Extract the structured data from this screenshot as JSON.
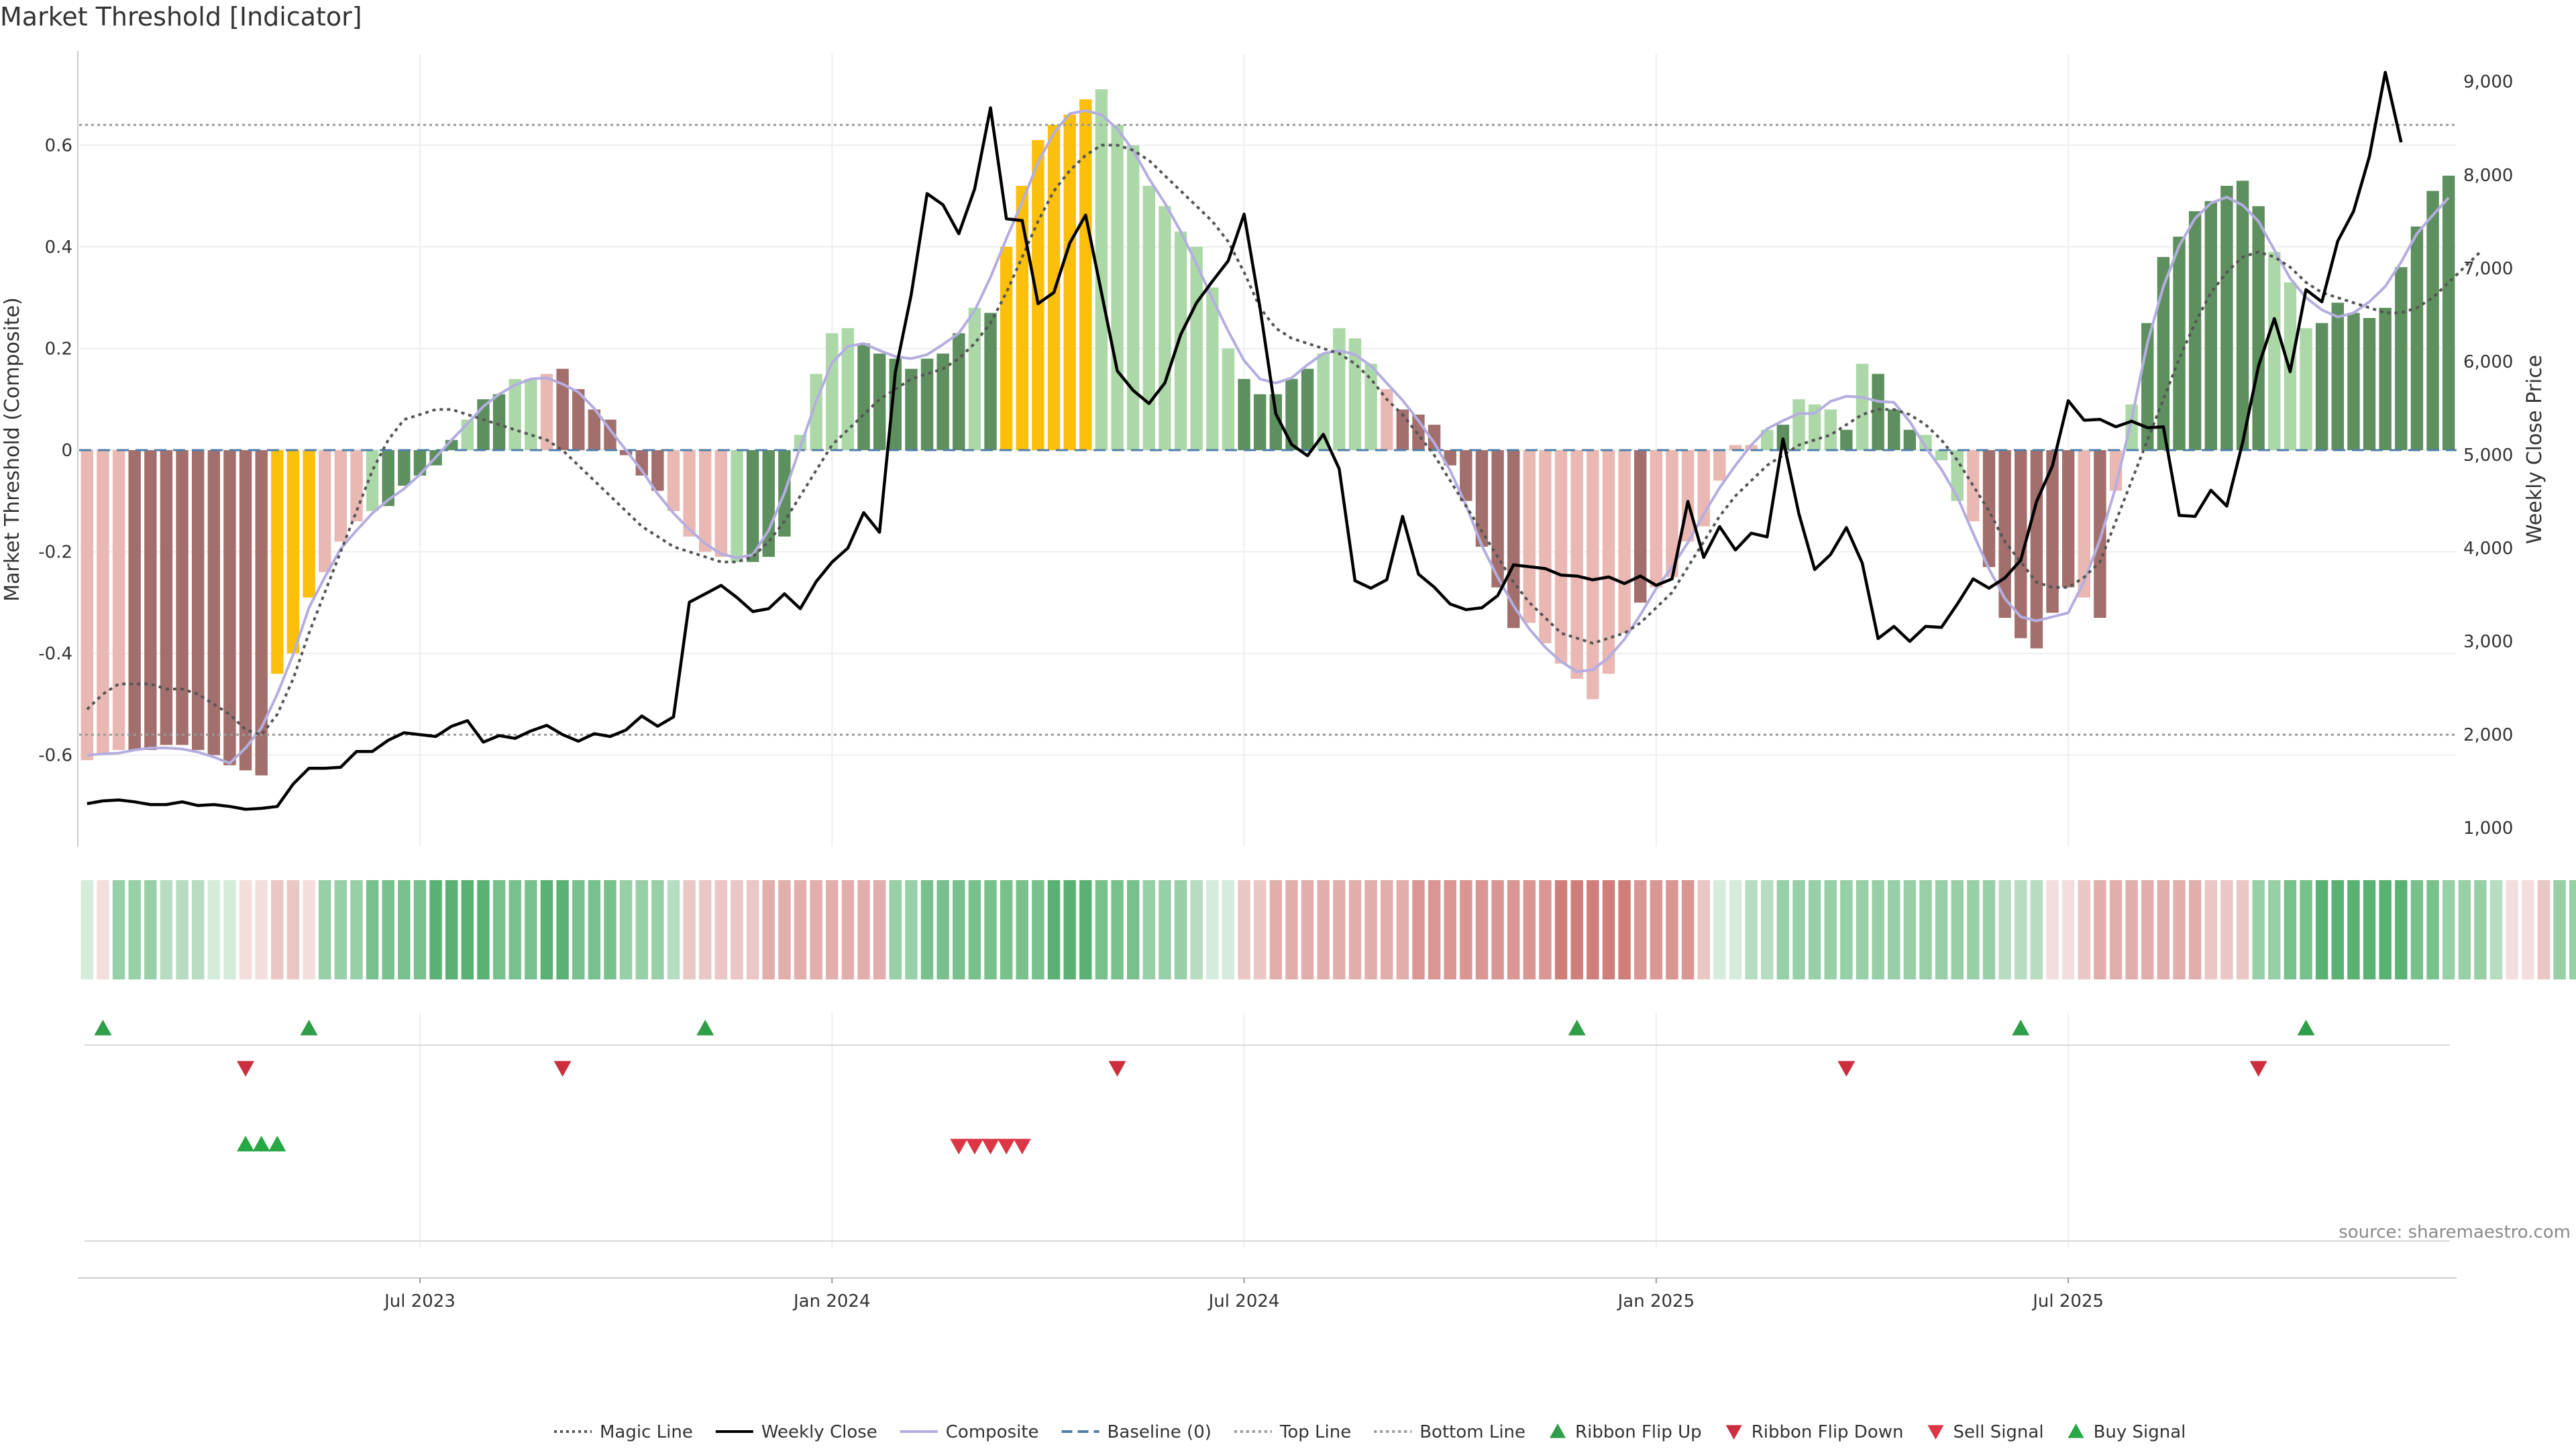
{
  "chart_data": {
    "type": "bar",
    "title": "Market Threshold [Indicator]",
    "ylabel_left": "Market Threshold (Composite)",
    "ylabel_right": "Weekly Close Price",
    "source": "source: sharemaestro.com",
    "ylim_left": [
      -0.78,
      0.78
    ],
    "ylim_right": [
      800,
      9300
    ],
    "yticks_left": [
      "-0.6",
      "-0.4",
      "-0.2",
      "0",
      "0.2",
      "0.4",
      "0.6"
    ],
    "yticks_right": [
      "1,000",
      "2,000",
      "3,000",
      "4,000",
      "5,000",
      "6,000",
      "7,000",
      "8,000",
      "9,000"
    ],
    "x_ticks": [
      {
        "label": "Jul 2023",
        "week": 21
      },
      {
        "label": "Jan 2024",
        "week": 47
      },
      {
        "label": "Jul 2024",
        "week": 73
      },
      {
        "label": "Jan 2025",
        "week": 99
      },
      {
        "label": "Jul 2025",
        "week": 125
      }
    ],
    "top_line": 0.64,
    "bottom_line": -0.56,
    "baseline": 0,
    "composite": [
      -0.61,
      -0.6,
      -0.59,
      -0.59,
      -0.59,
      -0.58,
      -0.58,
      -0.59,
      -0.6,
      -0.62,
      -0.63,
      -0.64,
      -0.44,
      -0.4,
      -0.29,
      -0.24,
      -0.18,
      -0.14,
      -0.12,
      -0.11,
      -0.07,
      -0.05,
      -0.03,
      0.02,
      0.06,
      0.1,
      0.11,
      0.14,
      0.14,
      0.15,
      0.16,
      0.12,
      0.08,
      0.06,
      -0.01,
      -0.05,
      -0.08,
      -0.12,
      -0.17,
      -0.2,
      -0.21,
      -0.22,
      -0.22,
      -0.21,
      -0.17,
      0.03,
      0.15,
      0.23,
      0.24,
      0.21,
      0.19,
      0.18,
      0.16,
      0.18,
      0.19,
      0.23,
      0.28,
      0.27,
      0.4,
      0.52,
      0.61,
      0.64,
      0.66,
      0.69,
      0.71,
      0.64,
      0.6,
      0.52,
      0.48,
      0.43,
      0.4,
      0.32,
      0.2,
      0.14,
      0.11,
      0.11,
      0.14,
      0.16,
      0.19,
      0.24,
      0.22,
      0.17,
      0.12,
      0.08,
      0.07,
      0.05,
      -0.03,
      -0.1,
      -0.19,
      -0.27,
      -0.35,
      -0.34,
      -0.38,
      -0.42,
      -0.45,
      -0.49,
      -0.44,
      -0.36,
      -0.3,
      -0.27,
      -0.25,
      -0.18,
      -0.15,
      -0.06,
      0.01,
      0.01,
      0.04,
      0.05,
      0.1,
      0.09,
      0.08,
      0.04,
      0.17,
      0.15,
      0.08,
      0.04,
      0.03,
      -0.02,
      -0.1,
      -0.14,
      -0.23,
      -0.33,
      -0.37,
      -0.39,
      -0.32,
      -0.27,
      -0.29,
      -0.33,
      -0.08,
      0.09,
      0.25,
      0.38,
      0.42,
      0.47,
      0.49,
      0.52,
      0.53,
      0.48,
      0.39,
      0.33,
      0.24,
      0.25,
      0.29,
      0.27,
      0.26,
      0.28,
      0.36,
      0.44,
      0.51,
      0.54
    ],
    "bar_color_codes": "rrrRRRRRRRRRYYYrrrgGGGGGgGGggrRRRRRRRrrrrgGGGggggGGGGGGGgGYYYYYYgggggggggGGGGGggggrRRRRRRRRrrrrrrrRrrrrrrrgGgggGgGGGgggrRRRRRRrRrgGGGGGGGGgggGGGGGGGGG",
    "magic_line": [
      -0.51,
      -0.48,
      -0.46,
      -0.46,
      -0.46,
      -0.47,
      -0.47,
      -0.48,
      -0.5,
      -0.52,
      -0.55,
      -0.56,
      -0.52,
      -0.45,
      -0.36,
      -0.28,
      -0.2,
      -0.12,
      -0.04,
      0.02,
      0.06,
      0.07,
      0.08,
      0.08,
      0.07,
      0.06,
      0.05,
      0.04,
      0.03,
      0.02,
      0.0,
      -0.03,
      -0.06,
      -0.09,
      -0.12,
      -0.15,
      -0.17,
      -0.19,
      -0.2,
      -0.21,
      -0.22,
      -0.22,
      -0.21,
      -0.18,
      -0.14,
      -0.09,
      -0.04,
      0.01,
      0.04,
      0.07,
      0.1,
      0.12,
      0.14,
      0.15,
      0.16,
      0.18,
      0.21,
      0.25,
      0.31,
      0.38,
      0.45,
      0.51,
      0.55,
      0.58,
      0.6,
      0.6,
      0.59,
      0.57,
      0.54,
      0.51,
      0.48,
      0.45,
      0.41,
      0.35,
      0.28,
      0.24,
      0.22,
      0.21,
      0.2,
      0.19,
      0.17,
      0.14,
      0.1,
      0.07,
      0.03,
      -0.01,
      -0.06,
      -0.11,
      -0.16,
      -0.21,
      -0.26,
      -0.3,
      -0.33,
      -0.36,
      -0.37,
      -0.38,
      -0.37,
      -0.36,
      -0.34,
      -0.31,
      -0.28,
      -0.23,
      -0.18,
      -0.13,
      -0.09,
      -0.06,
      -0.03,
      -0.01,
      0.01,
      0.02,
      0.03,
      0.05,
      0.07,
      0.08,
      0.08,
      0.07,
      0.05,
      0.02,
      -0.02,
      -0.07,
      -0.12,
      -0.18,
      -0.22,
      -0.26,
      -0.27,
      -0.27,
      -0.25,
      -0.22,
      -0.14,
      -0.06,
      0.02,
      0.1,
      0.18,
      0.25,
      0.31,
      0.35,
      0.38,
      0.39,
      0.38,
      0.36,
      0.33,
      0.31,
      0.3,
      0.29,
      0.28,
      0.27,
      0.27,
      0.28,
      0.3,
      0.33,
      0.36,
      0.39
    ],
    "weekly_close": [
      1260,
      1290,
      1300,
      1280,
      1250,
      1250,
      1280,
      1240,
      1250,
      1230,
      1200,
      1210,
      1230,
      1470,
      1640,
      1640,
      1650,
      1820,
      1820,
      1940,
      2020,
      2000,
      1980,
      2090,
      2150,
      1920,
      1990,
      1960,
      2040,
      2100,
      2000,
      1930,
      2010,
      1980,
      2050,
      2200,
      2090,
      2190,
      3420,
      3510,
      3600,
      3470,
      3320,
      3350,
      3510,
      3350,
      3640,
      3850,
      4000,
      4380,
      4170,
      5890,
      6720,
      7800,
      7680,
      7370,
      7850,
      8720,
      7530,
      7510,
      6620,
      6740,
      7270,
      7570,
      6740,
      5900,
      5690,
      5550,
      5770,
      6290,
      6630,
      6860,
      7080,
      7580,
      6580,
      5440,
      5110,
      4990,
      5220,
      4850,
      3650,
      3570,
      3660,
      4340,
      3720,
      3580,
      3400,
      3340,
      3360,
      3490,
      3820,
      3800,
      3780,
      3710,
      3700,
      3660,
      3690,
      3620,
      3700,
      3600,
      3670,
      4500,
      3900,
      4230,
      3980,
      4160,
      4120,
      5170,
      4370,
      3770,
      3930,
      4220,
      3840,
      3030,
      3160,
      3000,
      3160,
      3150,
      3400,
      3670,
      3570,
      3680,
      3870,
      4500,
      4880,
      5580,
      5370,
      5380,
      5300,
      5360,
      5290,
      5300,
      4350,
      4340,
      4620,
      4450,
      5130,
      5950,
      6460,
      5890,
      6770,
      6640,
      7290,
      7610,
      8200,
      9100,
      8350
    ],
    "ribbon": [
      1,
      -1,
      3,
      3,
      3,
      2,
      2,
      2,
      1,
      1,
      -1,
      -1,
      -2,
      -2,
      -1,
      3,
      3,
      3,
      4,
      4,
      4,
      4,
      5,
      5,
      5,
      5,
      4,
      4,
      4,
      5,
      5,
      4,
      4,
      4,
      3,
      3,
      3,
      2,
      -2,
      -2,
      -2,
      -2,
      -2,
      -3,
      -3,
      -3,
      -3,
      -3,
      -3,
      -3,
      -3,
      3,
      3,
      4,
      4,
      4,
      4,
      4,
      4,
      4,
      4,
      5,
      5,
      5,
      4,
      4,
      4,
      3,
      3,
      3,
      2,
      1,
      1,
      -2,
      -2,
      -3,
      -3,
      -3,
      -3,
      -3,
      -3,
      -3,
      -3,
      -3,
      -4,
      -4,
      -4,
      -4,
      -4,
      -4,
      -4,
      -4,
      -4,
      -5,
      -5,
      -5,
      -5,
      -5,
      -4,
      -4,
      -4,
      -4,
      -2,
      1,
      1,
      2,
      2,
      3,
      3,
      3,
      3,
      3,
      3,
      3,
      3,
      3,
      3,
      3,
      3,
      3,
      3,
      2,
      2,
      2,
      -1,
      -1,
      -2,
      -3,
      -3,
      -3,
      -3,
      -3,
      -3,
      -3,
      -2,
      -2,
      -2,
      3,
      3,
      4,
      4,
      5,
      5,
      5,
      5,
      5,
      5,
      4,
      4,
      3,
      3,
      3,
      2,
      -1,
      -1,
      -2,
      3,
      3,
      3,
      2
    ],
    "ribbon_flip_up": [
      1,
      14,
      39,
      94,
      122,
      140
    ],
    "ribbon_flip_down": [
      10,
      30,
      65,
      111,
      137
    ],
    "buy_signal": [
      10,
      11,
      12
    ],
    "sell_signal": [
      55,
      56,
      57,
      58,
      59
    ],
    "legend": [
      {
        "label": "Magic Line",
        "kind": "dotted-line",
        "color": "#555555"
      },
      {
        "label": "Weekly Close",
        "kind": "line",
        "color": "#000000"
      },
      {
        "label": "Composite",
        "kind": "line",
        "color": "#b4aee0"
      },
      {
        "label": "Baseline (0)",
        "kind": "dashed-line",
        "color": "#4f7fa8"
      },
      {
        "label": "Top Line",
        "kind": "dotted-line",
        "color": "#999999"
      },
      {
        "label": "Bottom Line",
        "kind": "dotted-line",
        "color": "#999999"
      },
      {
        "label": "Ribbon Flip Up",
        "kind": "triangle-up",
        "color": "#2e9e48"
      },
      {
        "label": "Ribbon Flip Down",
        "kind": "triangle-down",
        "color": "#cc2e3d"
      },
      {
        "label": "Sell Signal",
        "kind": "triangle-down",
        "color": "#dc3545"
      },
      {
        "label": "Buy Signal",
        "kind": "triangle-up",
        "color": "#28a745"
      }
    ],
    "colors": {
      "red_light": "#eab8b2",
      "red_dark": "#a36f6c",
      "green_light": "#acd8a8",
      "green_dark": "#5e8f5e",
      "yellow": "#fbbf0c",
      "ribbon_up": "#3ea65a",
      "ribbon_down": "#c86964",
      "flip_up": "#2e9e48",
      "flip_down": "#cc2e3d",
      "buy": "#28a745",
      "sell": "#dc3545",
      "grid": "#eeeeee",
      "ref_line": "#999999",
      "baseline": "#4f7fa8",
      "composite": "#b4aee0",
      "magic": "#555555",
      "close": "#000000"
    }
  }
}
